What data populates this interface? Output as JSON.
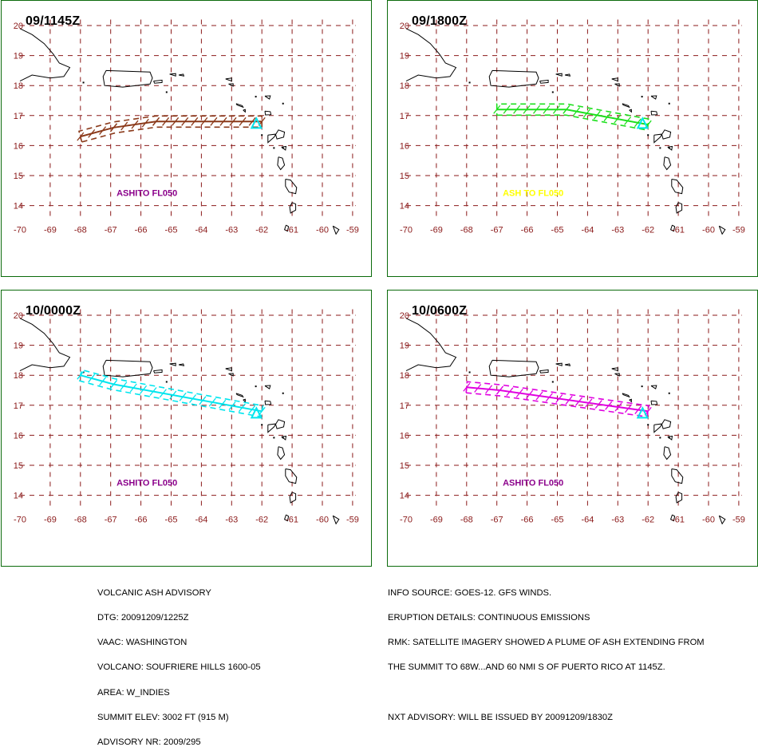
{
  "colors": {
    "tick_label": "#8b1a1a",
    "grid": "#8b1a1a",
    "coast": "#000000",
    "panel_border": "#0b6b0b",
    "volcano": "#00e5ee"
  },
  "map": {
    "lat_labels": [
      "20",
      "19",
      "18",
      "17",
      "16",
      "15",
      "14"
    ],
    "lon_labels": [
      "-70",
      "-69",
      "-68",
      "-67",
      "-66",
      "-65",
      "-64",
      "-63",
      "-62",
      "-61",
      "-60",
      "-59"
    ]
  },
  "panels": [
    {
      "time": "09/1145Z",
      "label": "ASHITO FL050",
      "label_color": "#8b008b",
      "plume_color": "#8b3a1a",
      "plume": [
        [
          -68.0,
          16.3
        ],
        [
          -66.9,
          16.6
        ],
        [
          -65.5,
          16.8
        ],
        [
          -62.0,
          16.8
        ]
      ]
    },
    {
      "time": "09/1800Z",
      "label": "ASH TO FL050",
      "label_color": "#ffff00",
      "plume_color": "#1ee01e",
      "plume": [
        [
          -67.0,
          17.2
        ],
        [
          -64.7,
          17.2
        ],
        [
          -62.0,
          16.7
        ]
      ]
    },
    {
      "time": "10/0000Z",
      "label": "ASHITO FL050",
      "label_color": "#8b008b",
      "plume_color": "#00e5ee",
      "plume": [
        [
          -68.0,
          18.0
        ],
        [
          -66.9,
          17.7
        ],
        [
          -62.0,
          16.8
        ]
      ]
    },
    {
      "time": "10/0600Z",
      "label": "ASHITO FL050",
      "label_color": "#8b008b",
      "plume_color": "#e000e0",
      "plume": [
        [
          -68.0,
          17.6
        ],
        [
          -66.9,
          17.5
        ],
        [
          -62.0,
          16.8
        ]
      ]
    }
  ],
  "advisory_left": [
    "VOLCANIC ASH ADVISORY",
    "DTG: 20091209/1225Z",
    "VAAC: WASHINGTON",
    "VOLCANO: SOUFRIERE HILLS 1600-05",
    "AREA: W_INDIES",
    "SUMMIT ELEV: 3002 FT (915 M)",
    "ADVISORY NR: 2009/295"
  ],
  "advisory_right": [
    "INFO SOURCE: GOES-12. GFS WINDS.",
    "ERUPTION DETAILS: CONTINUOUS EMISSIONS",
    "RMK: SATELLITE IMAGERY SHOWED A PLUME OF ASH EXTENDING FROM",
    "THE SUMMIT TO 68W...AND 60 NMI S OF PUERTO RICO AT 1145Z.",
    "",
    "NXT ADVISORY: WILL BE ISSUED BY 20091209/1830Z"
  ]
}
